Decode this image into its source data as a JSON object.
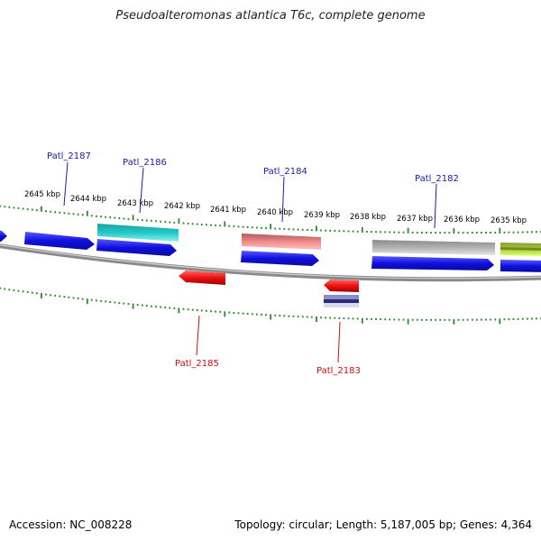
{
  "title": "Pseudoalteromonas atlantica T6c, complete genome",
  "footer": {
    "accession": "Accession: NC_008228",
    "summary": "Topology: circular; Length: 5,187,005 bp; Genes: 4,364"
  },
  "colors": {
    "backbone": "#8a8a8a",
    "ticks": "#2a8a2a",
    "label_top": "#1a1aa8",
    "label_bottom": "#cc1111",
    "cds": "#1010e0",
    "cyan": "#22c8c8",
    "pink": "#f08a8a",
    "gray": "#b0b0b0",
    "red": "#ee1111",
    "lime": "#a6d23a",
    "navy": "#3a3a8a"
  },
  "kbp_labels": [
    "2645 kbp",
    "2644 kbp",
    "2643 kbp",
    "2642 kbp",
    "2641 kbp",
    "2640 kbp",
    "2639 kbp",
    "2638 kbp",
    "2637 kbp",
    "2636 kbp",
    "2635 kbp"
  ],
  "gene_labels_top": [
    "Patl_2187",
    "Patl_2186",
    "Patl_2184",
    "Patl_2182"
  ],
  "gene_labels_bottom": [
    "Patl_2185",
    "Patl_2183"
  ]
}
